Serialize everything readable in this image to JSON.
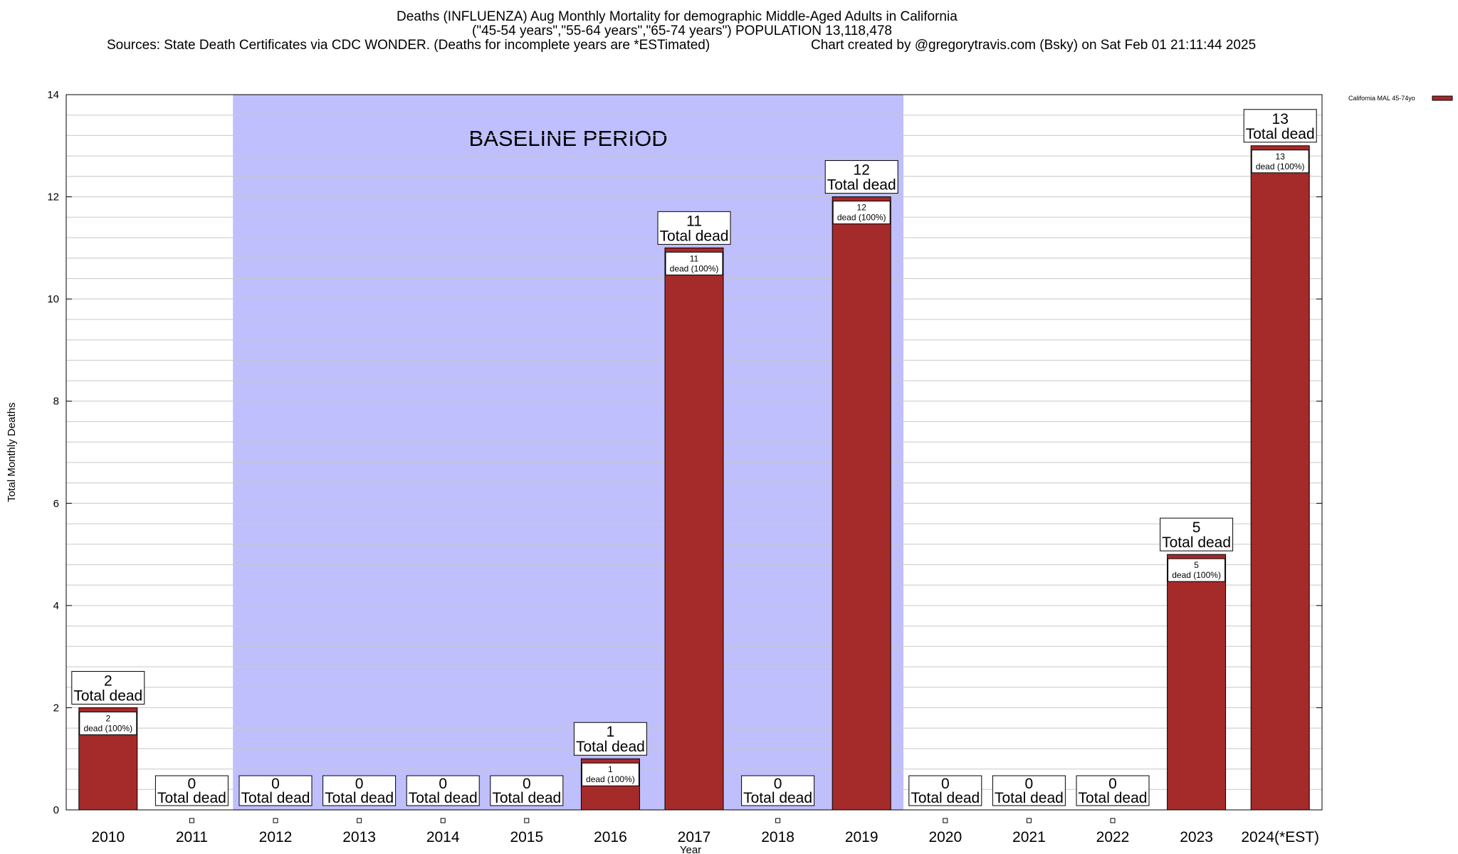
{
  "chart_data": {
    "type": "bar",
    "title": "Deaths (INFLUENZA) Aug Monthly Mortality for demographic Middle-Aged Adults in California",
    "subtitle": "(\"45-54 years\",\"55-64 years\",\"65-74 years\") POPULATION 13,118,478",
    "sources": "Sources: State Death Certificates via CDC WONDER. (Deaths for incomplete years are *ESTimated)",
    "credit": "Chart created by @gregorytravis.com (Bsky) on Sat Feb 01 21:11:44 2025",
    "xlabel": "Year",
    "ylabel": "Total Monthly Deaths",
    "ylim": [
      0,
      14
    ],
    "yticks": [
      0,
      2,
      4,
      6,
      8,
      10,
      12,
      14
    ],
    "grid": true,
    "legend_position": "top-right",
    "categories": [
      "2010",
      "2011",
      "2012",
      "2013",
      "2014",
      "2015",
      "2016",
      "2017",
      "2018",
      "2019",
      "2020",
      "2021",
      "2022",
      "2023",
      "2024(*EST)"
    ],
    "series": [
      {
        "name": "California MAL 45-74yo",
        "color": "#a52a2a",
        "values": [
          2,
          0,
          0,
          0,
          0,
          0,
          1,
          11,
          0,
          12,
          0,
          0,
          0,
          5,
          13
        ]
      }
    ],
    "total_label": "Total dead",
    "inner_label_suffix": "dead (100%)",
    "baseline": {
      "label": "BASELINE PERIOD",
      "from": "2012",
      "to": "2019",
      "color": "#bfbffd"
    }
  }
}
